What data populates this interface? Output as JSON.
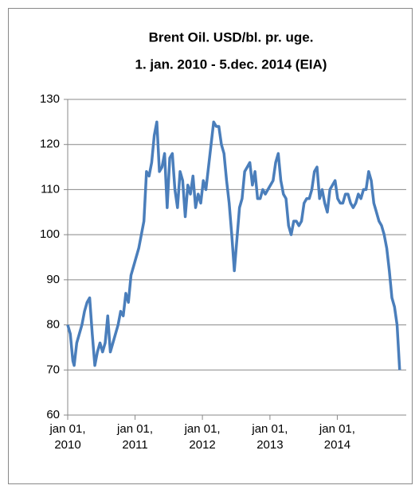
{
  "chart_data": {
    "type": "line",
    "title": "Brent Oil. USD/bl. pr. uge.",
    "subtitle": "1. jan. 2010 - 5.dec. 2014 (EIA)",
    "series": [
      {
        "name": "Brent",
        "color": "#4a7ebb",
        "x": [
          "2010-01-01",
          "2010-01-15",
          "2010-01-29",
          "2010-02-05",
          "2010-02-19",
          "2010-03-05",
          "2010-03-19",
          "2010-04-02",
          "2010-04-16",
          "2010-04-30",
          "2010-05-14",
          "2010-05-28",
          "2010-06-11",
          "2010-06-25",
          "2010-07-09",
          "2010-07-23",
          "2010-08-06",
          "2010-08-20",
          "2010-09-03",
          "2010-09-17",
          "2010-10-01",
          "2010-10-15",
          "2010-10-29",
          "2010-11-12",
          "2010-11-26",
          "2010-12-10",
          "2010-12-24",
          "2011-01-07",
          "2011-01-21",
          "2011-02-04",
          "2011-02-18",
          "2011-03-04",
          "2011-03-18",
          "2011-04-01",
          "2011-04-15",
          "2011-04-29",
          "2011-05-13",
          "2011-05-27",
          "2011-06-10",
          "2011-06-24",
          "2011-07-08",
          "2011-07-22",
          "2011-08-05",
          "2011-08-19",
          "2011-09-02",
          "2011-09-16",
          "2011-09-30",
          "2011-10-14",
          "2011-10-28",
          "2011-11-11",
          "2011-11-25",
          "2011-12-09",
          "2011-12-23",
          "2012-01-06",
          "2012-01-20",
          "2012-02-03",
          "2012-02-17",
          "2012-03-02",
          "2012-03-16",
          "2012-03-30",
          "2012-04-13",
          "2012-04-27",
          "2012-05-11",
          "2012-05-25",
          "2012-06-08",
          "2012-06-22",
          "2012-07-06",
          "2012-07-20",
          "2012-08-03",
          "2012-08-17",
          "2012-08-31",
          "2012-09-14",
          "2012-09-28",
          "2012-10-12",
          "2012-10-26",
          "2012-11-09",
          "2012-11-23",
          "2012-12-07",
          "2012-12-21",
          "2013-01-04",
          "2013-01-18",
          "2013-02-01",
          "2013-02-15",
          "2013-03-01",
          "2013-03-15",
          "2013-03-29",
          "2013-04-12",
          "2013-04-26",
          "2013-05-10",
          "2013-05-24",
          "2013-06-07",
          "2013-06-21",
          "2013-07-05",
          "2013-07-19",
          "2013-08-02",
          "2013-08-16",
          "2013-08-30",
          "2013-09-13",
          "2013-09-27",
          "2013-10-11",
          "2013-10-25",
          "2013-11-08",
          "2013-11-22",
          "2013-12-06",
          "2013-12-20",
          "2014-01-03",
          "2014-01-17",
          "2014-01-31",
          "2014-02-14",
          "2014-02-28",
          "2014-03-14",
          "2014-03-28",
          "2014-04-11",
          "2014-04-25",
          "2014-05-09",
          "2014-05-23",
          "2014-06-06",
          "2014-06-20",
          "2014-07-04",
          "2014-07-18",
          "2014-08-01",
          "2014-08-15",
          "2014-08-29",
          "2014-09-12",
          "2014-09-26",
          "2014-10-10",
          "2014-10-24",
          "2014-11-07",
          "2014-11-21",
          "2014-12-05"
        ],
        "values": [
          80,
          78,
          72,
          71,
          76,
          78,
          80,
          83,
          85,
          86,
          78,
          71,
          74,
          76,
          74,
          76,
          82,
          74,
          76,
          78,
          80,
          83,
          82,
          87,
          85,
          91,
          93,
          95,
          97,
          100,
          103,
          114,
          113,
          116,
          122,
          125,
          114,
          115,
          118,
          106,
          117,
          118,
          110,
          106,
          114,
          112,
          104,
          111,
          109,
          113,
          106,
          109,
          107,
          112,
          110,
          115,
          120,
          125,
          124,
          124,
          120,
          118,
          112,
          107,
          100,
          92,
          99,
          106,
          108,
          114,
          115,
          116,
          111,
          114,
          108,
          108,
          110,
          109,
          110,
          111,
          112,
          116,
          118,
          112,
          109,
          108,
          102,
          100,
          103,
          103,
          102,
          103,
          107,
          108,
          108,
          110,
          114,
          115,
          108,
          110,
          107,
          105,
          110,
          111,
          112,
          108,
          107,
          107,
          109,
          109,
          107,
          106,
          107,
          109,
          108,
          110,
          110,
          114,
          112,
          107,
          105,
          103,
          102,
          100,
          97,
          92,
          86,
          84,
          80,
          70
        ]
      }
    ],
    "xlim": [
      "2010-01-01",
      "2015-01-01"
    ],
    "xticks": [
      {
        "value": "2010-01-01",
        "label": "jan 01, 2010"
      },
      {
        "value": "2011-01-01",
        "label": "jan 01, 2011"
      },
      {
        "value": "2012-01-01",
        "label": "jan 01, 2012"
      },
      {
        "value": "2013-01-01",
        "label": "jan 01, 2013"
      },
      {
        "value": "2014-01-01",
        "label": "jan 01, 2014"
      }
    ],
    "ylim": [
      60,
      130
    ],
    "yticks": [
      60,
      70,
      80,
      90,
      100,
      110,
      120,
      130
    ],
    "grid": true
  }
}
